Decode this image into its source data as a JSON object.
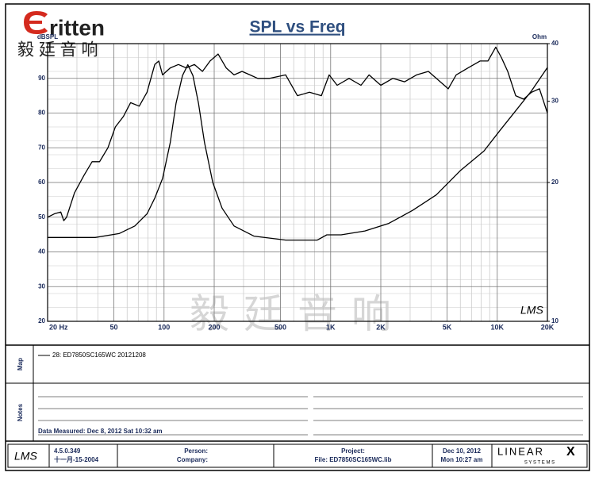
{
  "header": {
    "logo": "ritten",
    "logo_cn": "毅 廷 音 响"
  },
  "chart_data": {
    "type": "line",
    "title": "SPL vs Freq",
    "y_label": "dBSPL",
    "y2_label": "Ohm",
    "xscale": "log",
    "y2scale": "log",
    "grid": true,
    "xlim": [
      20,
      20000
    ],
    "ylim": [
      20,
      100
    ],
    "y2lim": [
      10,
      40
    ],
    "xticks": [
      {
        "value": 20,
        "label": "20 Hz"
      },
      50,
      100,
      200,
      500,
      {
        "value": 1000,
        "label": "1K"
      },
      {
        "value": 2000,
        "label": "2K"
      },
      {
        "value": 5000,
        "label": "5K"
      },
      {
        "value": 10000,
        "label": "10K"
      },
      {
        "value": 20000,
        "label": "20K"
      }
    ],
    "xminor": [
      30,
      40,
      60,
      70,
      80,
      90,
      300,
      400,
      600,
      700,
      800,
      900,
      3000,
      4000,
      6000,
      7000,
      8000,
      9000
    ],
    "yticks": [
      20,
      30,
      40,
      50,
      60,
      70,
      80,
      90
    ],
    "yminor": [
      24,
      28,
      32,
      36,
      40,
      44,
      48,
      52,
      56,
      60,
      64,
      68,
      72,
      76,
      84,
      88,
      92,
      96,
      100
    ],
    "y2ticks": [
      10,
      20,
      30,
      40
    ],
    "series": [
      {
        "name": "28: ED7850SC165WC 20121208",
        "color": "#000000",
        "x": [
          20,
          22,
          24,
          25,
          26,
          29,
          33,
          37,
          41,
          46,
          51,
          57,
          63,
          71,
          79,
          88,
          93,
          98,
          109,
          122,
          136,
          152,
          170,
          189,
          211,
          236,
          263,
          294,
          328,
          365,
          430,
          537,
          632,
          746,
          880,
          980,
          1094,
          1290,
          1520,
          1700,
          2000,
          2360,
          2780,
          3280,
          3860,
          4550,
          5080,
          5670,
          6680,
          7880,
          8790,
          9800,
          10590,
          11560,
          12900,
          14400,
          16060,
          17920,
          20000
        ],
        "values": [
          50,
          51,
          51.5,
          49,
          50,
          57,
          62,
          66,
          66,
          70,
          76,
          79,
          83,
          82,
          86,
          94,
          95,
          91,
          93,
          94,
          93,
          94,
          92,
          95,
          97,
          93,
          91,
          92,
          91,
          90,
          90,
          91,
          85,
          86,
          85,
          91,
          88,
          90,
          88,
          91,
          88,
          90,
          89,
          91,
          92,
          89,
          87,
          91,
          93,
          95,
          95,
          99,
          96,
          92,
          85,
          84,
          86,
          87,
          80
        ]
      },
      {
        "color": "#000000",
        "axis": "y2",
        "x": [
          20,
          38.6,
          53.7,
          66.8,
          79,
          88,
          98,
          109,
          118,
          129,
          139,
          149,
          161,
          175,
          196,
          223,
          263,
          346,
          537,
          832,
          948,
          1156,
          1606,
          2232,
          3100,
          4310,
          5990,
          8320,
          10360,
          12900,
          16070,
          20000
        ],
        "values": [
          15.2,
          15.2,
          15.5,
          16.1,
          17.1,
          18.5,
          20.4,
          24.4,
          29.7,
          34.1,
          36,
          34.1,
          29.7,
          24.4,
          20,
          17.6,
          16.1,
          15.3,
          15.0,
          15.0,
          15.4,
          15.4,
          15.7,
          16.3,
          17.4,
          18.8,
          21.2,
          23.4,
          25.9,
          28.6,
          31.6,
          35.5
        ]
      }
    ],
    "brand": "LMS"
  },
  "watermark": "毅廷音响",
  "map": {
    "label": "Map"
  },
  "notes": {
    "label": "Notes",
    "measured": "Data Measured: Dec  8, 2012  Sat 10:32 am"
  },
  "footer": {
    "logo": "LMS",
    "version": "4.5.0.349",
    "version_date": "十一月-15-2004",
    "person": "Person:",
    "company": "Company:",
    "project": "Project:",
    "file": "File: ED7850SC165WC.lib",
    "date": "Dec 10, 2012",
    "time": "Mon 10:27 am",
    "vendor": "LINEAR",
    "vendor_x": "X",
    "vendor_sub": "S Y S T E M S"
  }
}
